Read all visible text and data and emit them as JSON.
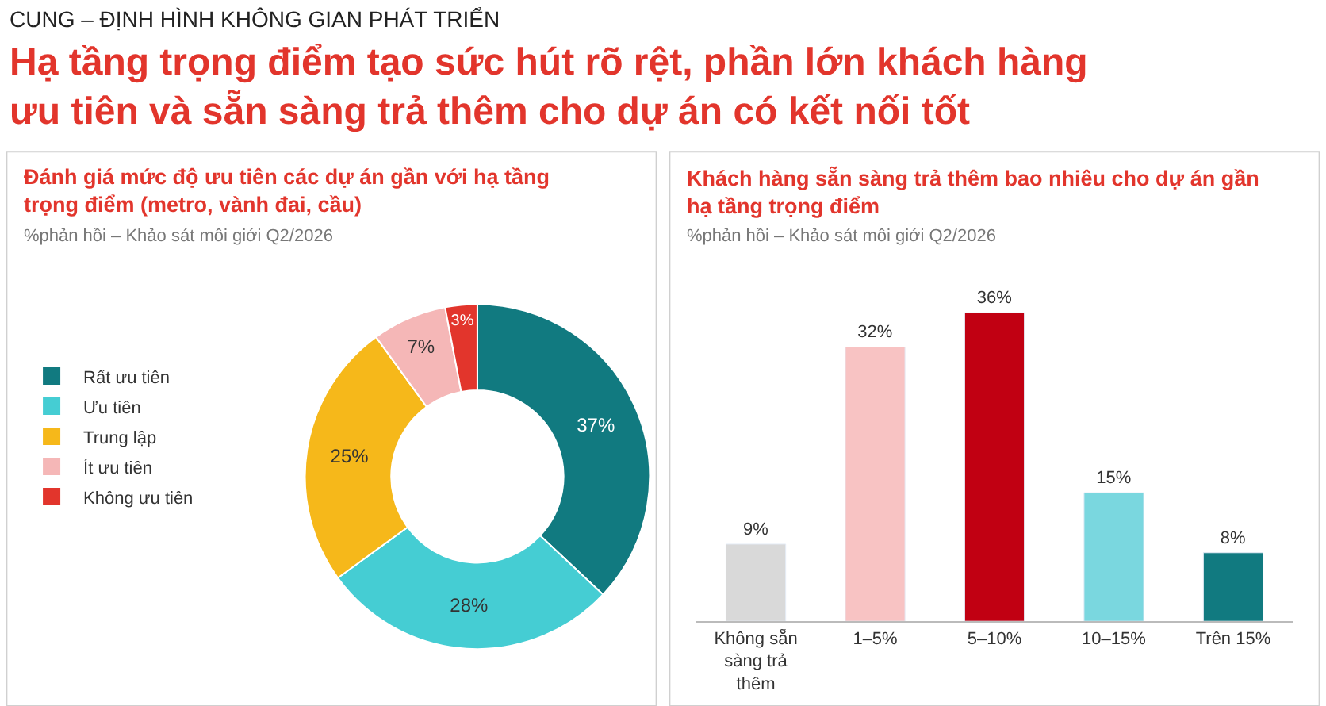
{
  "chart_data": [
    {
      "type": "other",
      "annotations": [
        "CUNG – ĐỊNH HÌNH KHÔNG GIAN PHÁT TRIỂN",
        "Hạ tầng trọng điểm tạo sức hút rõ rệt, phần lớn khách hàng ưu tiên và sẵn sàng trả thêm cho dự án có kết nối tốt"
      ]
    },
    {
      "type": "donut",
      "title": "Đánh giá mức độ ưu tiên các dự án gần với hạ tầng trọng điểm (metro, vành đai, cầu)",
      "subtitle": "%phản hồi – Khảo sát môi giới Q2/2026",
      "categories": [
        "Rất ưu tiên",
        "Ưu tiên",
        "Trung lập",
        "Ít ưu tiên",
        "Không ưu tiên"
      ],
      "values": [
        37,
        28,
        25,
        7,
        3
      ],
      "colors": [
        "#117a80",
        "#45cdd3",
        "#f6b81a",
        "#f5b7b7",
        "#e2352c"
      ],
      "legend": "left",
      "value_labels": [
        "37%",
        "28%",
        "25%",
        "7%",
        "3%"
      ]
    },
    {
      "type": "bar",
      "title": "Khách hàng sẵn sàng trả thêm bao nhiêu cho dự án gần hạ tầng trọng điểm",
      "subtitle": "%phản hồi – Khảo sát môi giới Q2/2026",
      "categories": [
        "Không sẵn sàng trả thêm",
        "1–5%",
        "5–10%",
        "10–15%",
        "Trên 15%"
      ],
      "values": [
        9,
        32,
        36,
        15,
        8
      ],
      "colors": [
        "#d9d9d9",
        "#f8c3c3",
        "#c10012",
        "#7ad7df",
        "#117a80"
      ],
      "value_labels": [
        "9%",
        "32%",
        "36%",
        "15%",
        "8%"
      ],
      "tick_labels": "x"
    }
  ]
}
